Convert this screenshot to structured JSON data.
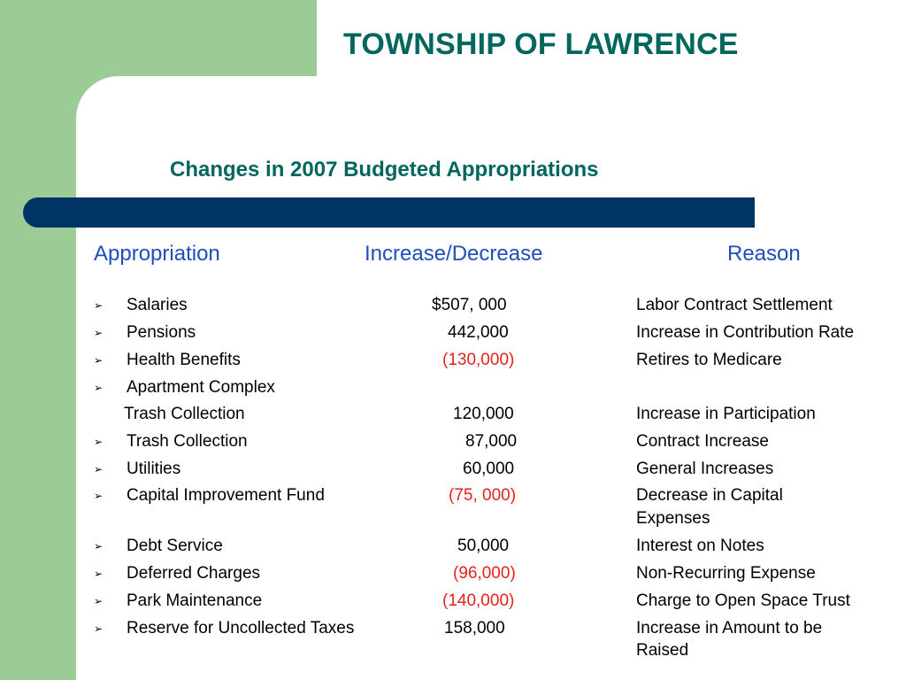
{
  "slide": {
    "title": "TOWNSHIP OF LAWRENCE",
    "subtitle": "Changes in 2007 Budgeted Appropriations",
    "colors": {
      "accent_green": "#9ccc95",
      "title_teal": "#00665e",
      "bar_navy": "#003466",
      "header_blue": "#1f4ebd",
      "negative_red": "#e6211c"
    }
  },
  "table": {
    "headers": {
      "appropriation": "Appropriation",
      "change": "Increase/Decrease",
      "reason": "Reason"
    },
    "bullet_glyph": "➢",
    "rows": [
      {
        "item": "Salaries",
        "amount": "$507, 000",
        "reason": "Labor Contract Settlement",
        "reason_line2": "",
        "negative": false
      },
      {
        "item": "Pensions",
        "amount": "442,000",
        "reason": "Increase in Contribution Rate",
        "reason_line2": "",
        "negative": false
      },
      {
        "item": "Health Benefits",
        "amount": "(130,000)",
        "reason": "Retires to Medicare",
        "reason_line2": "",
        "negative": true
      },
      {
        "item": "Apartment Complex",
        "item_line2": "Trash Collection",
        "amount": "120,000",
        "reason": "Increase in Participation",
        "reason_line2": "",
        "negative": false
      },
      {
        "item": "Trash Collection",
        "amount": "87,000",
        "reason": "Contract Increase",
        "reason_line2": "",
        "negative": false
      },
      {
        "item": "Utilities",
        "amount": "60,000",
        "reason": "General Increases",
        "reason_line2": "",
        "negative": false
      },
      {
        "item": "Capital Improvement Fund",
        "amount": "(75, 000)",
        "reason": "Decrease in Capital",
        "reason_line2": "Expenses",
        "negative": true
      },
      {
        "item": "Debt Service",
        "amount": "50,000",
        "reason": "Interest on Notes",
        "reason_line2": "",
        "negative": false
      },
      {
        "item": "Deferred Charges",
        "amount": "(96,000)",
        "reason": "Non-Recurring Expense",
        "reason_line2": "",
        "negative": true
      },
      {
        "item": "Park Maintenance",
        "amount": "(140,000)",
        "reason": "Charge to Open Space Trust",
        "reason_line2": "",
        "negative": true
      },
      {
        "item": "Reserve for Uncollected Taxes",
        "amount": "158,000",
        "reason": "Increase in Amount to be",
        "reason_line2": "Raised",
        "negative": false
      }
    ]
  }
}
